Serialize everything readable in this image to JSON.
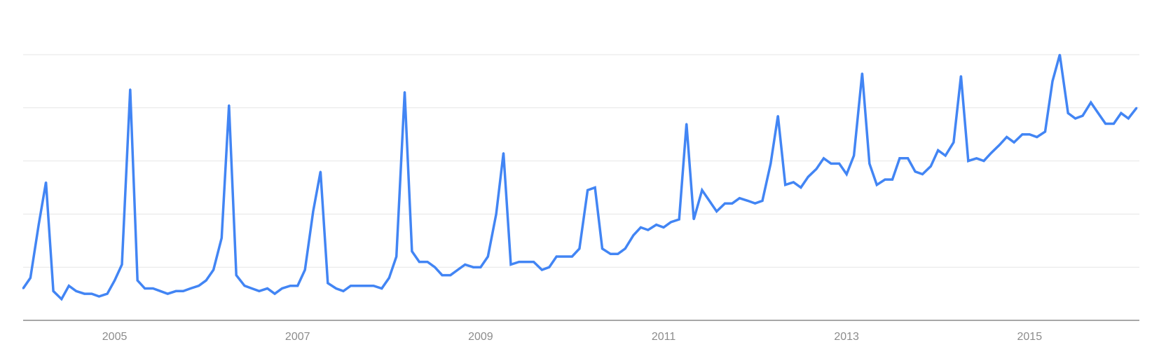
{
  "chart_data": {
    "type": "line",
    "xlim": [
      2004.0,
      2016.2
    ],
    "ylim": [
      0,
      100
    ],
    "grid": true,
    "x_ticks": [
      2005,
      2007,
      2009,
      2011,
      2013,
      2015
    ],
    "x_tick_labels": [
      "2005",
      "2007",
      "2009",
      "2011",
      "2013",
      "2015"
    ],
    "y_gridlines": [
      20,
      40,
      60,
      80,
      100
    ],
    "colors": {
      "series": "#4285f4",
      "grid": "#e6e6e6",
      "axis": "#8a8a8a",
      "tick_label": "#8c8c8c"
    },
    "series": [
      {
        "values": [
          [
            2004.0,
            12
          ],
          [
            2004.08,
            16
          ],
          [
            2004.17,
            36
          ],
          [
            2004.25,
            52
          ],
          [
            2004.33,
            11
          ],
          [
            2004.42,
            8
          ],
          [
            2004.5,
            13
          ],
          [
            2004.58,
            11
          ],
          [
            2004.67,
            10
          ],
          [
            2004.75,
            10
          ],
          [
            2004.83,
            9
          ],
          [
            2004.92,
            10
          ],
          [
            2005.0,
            15
          ],
          [
            2005.08,
            21
          ],
          [
            2005.17,
            87
          ],
          [
            2005.25,
            15
          ],
          [
            2005.33,
            12
          ],
          [
            2005.42,
            12
          ],
          [
            2005.5,
            11
          ],
          [
            2005.58,
            10
          ],
          [
            2005.67,
            11
          ],
          [
            2005.75,
            11
          ],
          [
            2005.83,
            12
          ],
          [
            2005.92,
            13
          ],
          [
            2006.0,
            15
          ],
          [
            2006.08,
            19
          ],
          [
            2006.17,
            31
          ],
          [
            2006.25,
            81
          ],
          [
            2006.33,
            17
          ],
          [
            2006.42,
            13
          ],
          [
            2006.5,
            12
          ],
          [
            2006.58,
            11
          ],
          [
            2006.67,
            12
          ],
          [
            2006.75,
            10
          ],
          [
            2006.83,
            12
          ],
          [
            2006.92,
            13
          ],
          [
            2007.0,
            13
          ],
          [
            2007.08,
            19
          ],
          [
            2007.17,
            41
          ],
          [
            2007.25,
            56
          ],
          [
            2007.33,
            14
          ],
          [
            2007.42,
            12
          ],
          [
            2007.5,
            11
          ],
          [
            2007.58,
            13
          ],
          [
            2007.67,
            13
          ],
          [
            2007.75,
            13
          ],
          [
            2007.83,
            13
          ],
          [
            2007.92,
            12
          ],
          [
            2008.0,
            16
          ],
          [
            2008.08,
            24
          ],
          [
            2008.17,
            86
          ],
          [
            2008.25,
            26
          ],
          [
            2008.33,
            22
          ],
          [
            2008.42,
            22
          ],
          [
            2008.5,
            20
          ],
          [
            2008.58,
            17
          ],
          [
            2008.67,
            17
          ],
          [
            2008.75,
            19
          ],
          [
            2008.83,
            21
          ],
          [
            2008.92,
            20
          ],
          [
            2009.0,
            20
          ],
          [
            2009.08,
            24
          ],
          [
            2009.17,
            40
          ],
          [
            2009.25,
            63
          ],
          [
            2009.33,
            21
          ],
          [
            2009.42,
            22
          ],
          [
            2009.5,
            22
          ],
          [
            2009.58,
            22
          ],
          [
            2009.67,
            19
          ],
          [
            2009.75,
            20
          ],
          [
            2009.83,
            24
          ],
          [
            2009.92,
            24
          ],
          [
            2010.0,
            24
          ],
          [
            2010.08,
            27
          ],
          [
            2010.17,
            49
          ],
          [
            2010.25,
            50
          ],
          [
            2010.33,
            27
          ],
          [
            2010.42,
            25
          ],
          [
            2010.5,
            25
          ],
          [
            2010.58,
            27
          ],
          [
            2010.67,
            32
          ],
          [
            2010.75,
            35
          ],
          [
            2010.83,
            34
          ],
          [
            2010.92,
            36
          ],
          [
            2011.0,
            35
          ],
          [
            2011.08,
            37
          ],
          [
            2011.17,
            38
          ],
          [
            2011.25,
            74
          ],
          [
            2011.33,
            38
          ],
          [
            2011.42,
            49
          ],
          [
            2011.5,
            45
          ],
          [
            2011.58,
            41
          ],
          [
            2011.67,
            44
          ],
          [
            2011.75,
            44
          ],
          [
            2011.83,
            46
          ],
          [
            2011.92,
            45
          ],
          [
            2012.0,
            44
          ],
          [
            2012.08,
            45
          ],
          [
            2012.17,
            59
          ],
          [
            2012.25,
            77
          ],
          [
            2012.33,
            51
          ],
          [
            2012.42,
            52
          ],
          [
            2012.5,
            50
          ],
          [
            2012.58,
            54
          ],
          [
            2012.67,
            57
          ],
          [
            2012.75,
            61
          ],
          [
            2012.83,
            59
          ],
          [
            2012.92,
            59
          ],
          [
            2013.0,
            55
          ],
          [
            2013.08,
            62
          ],
          [
            2013.17,
            93
          ],
          [
            2013.25,
            59
          ],
          [
            2013.33,
            51
          ],
          [
            2013.42,
            53
          ],
          [
            2013.5,
            53
          ],
          [
            2013.58,
            61
          ],
          [
            2013.67,
            61
          ],
          [
            2013.75,
            56
          ],
          [
            2013.83,
            55
          ],
          [
            2013.92,
            58
          ],
          [
            2014.0,
            64
          ],
          [
            2014.08,
            62
          ],
          [
            2014.17,
            67
          ],
          [
            2014.25,
            92
          ],
          [
            2014.33,
            60
          ],
          [
            2014.42,
            61
          ],
          [
            2014.5,
            60
          ],
          [
            2014.58,
            63
          ],
          [
            2014.67,
            66
          ],
          [
            2014.75,
            69
          ],
          [
            2014.83,
            67
          ],
          [
            2014.92,
            70
          ],
          [
            2015.0,
            70
          ],
          [
            2015.08,
            69
          ],
          [
            2015.17,
            71
          ],
          [
            2015.25,
            90
          ],
          [
            2015.33,
            100
          ],
          [
            2015.42,
            78
          ],
          [
            2015.5,
            76
          ],
          [
            2015.58,
            77
          ],
          [
            2015.67,
            82
          ],
          [
            2015.75,
            78
          ],
          [
            2015.83,
            74
          ],
          [
            2015.92,
            74
          ],
          [
            2016.0,
            78
          ],
          [
            2016.08,
            76
          ],
          [
            2016.17,
            80
          ]
        ]
      }
    ]
  }
}
